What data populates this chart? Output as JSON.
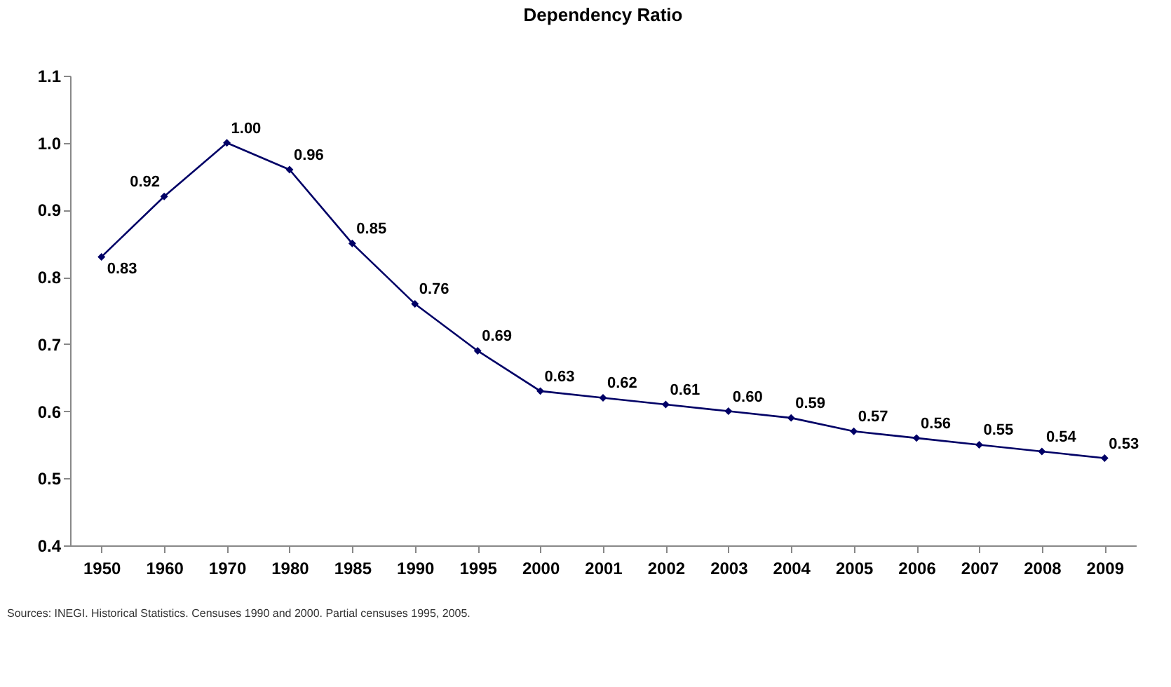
{
  "chart_data": {
    "type": "line",
    "title": "Dependency Ratio",
    "categories": [
      "1950",
      "1960",
      "1970",
      "1980",
      "1985",
      "1990",
      "1995",
      "2000",
      "2001",
      "2002",
      "2003",
      "2004",
      "2005",
      "2006",
      "2007",
      "2008",
      "2009"
    ],
    "series": [
      {
        "color": "#000066",
        "values": [
          0.83,
          0.92,
          1.0,
          0.96,
          0.85,
          0.76,
          0.69,
          0.63,
          0.62,
          0.61,
          0.6,
          0.59,
          0.57,
          0.56,
          0.55,
          0.54,
          0.53
        ],
        "value_labels": [
          "0.83",
          "0.92",
          "1.00",
          "0.96",
          "0.85",
          "0.76",
          "0.69",
          "0.63",
          "0.62",
          "0.61",
          "0.60",
          "0.59",
          "0.57",
          "0.56",
          "0.55",
          "0.54",
          "0.53"
        ]
      }
    ],
    "ylim": [
      0.4,
      1.1
    ],
    "yticks": [
      0.4,
      0.5,
      0.6,
      0.7,
      0.8,
      0.9,
      {
        "value": 1.0,
        "label": "1.0"
      },
      1.1
    ],
    "grid": false,
    "marker": "diamond",
    "line_style": "solid",
    "annotations": [
      "Sources: INEGI.  Historical Statistics. Censuses 1990 and 2000. Partial censuses 1995, 2005."
    ]
  }
}
